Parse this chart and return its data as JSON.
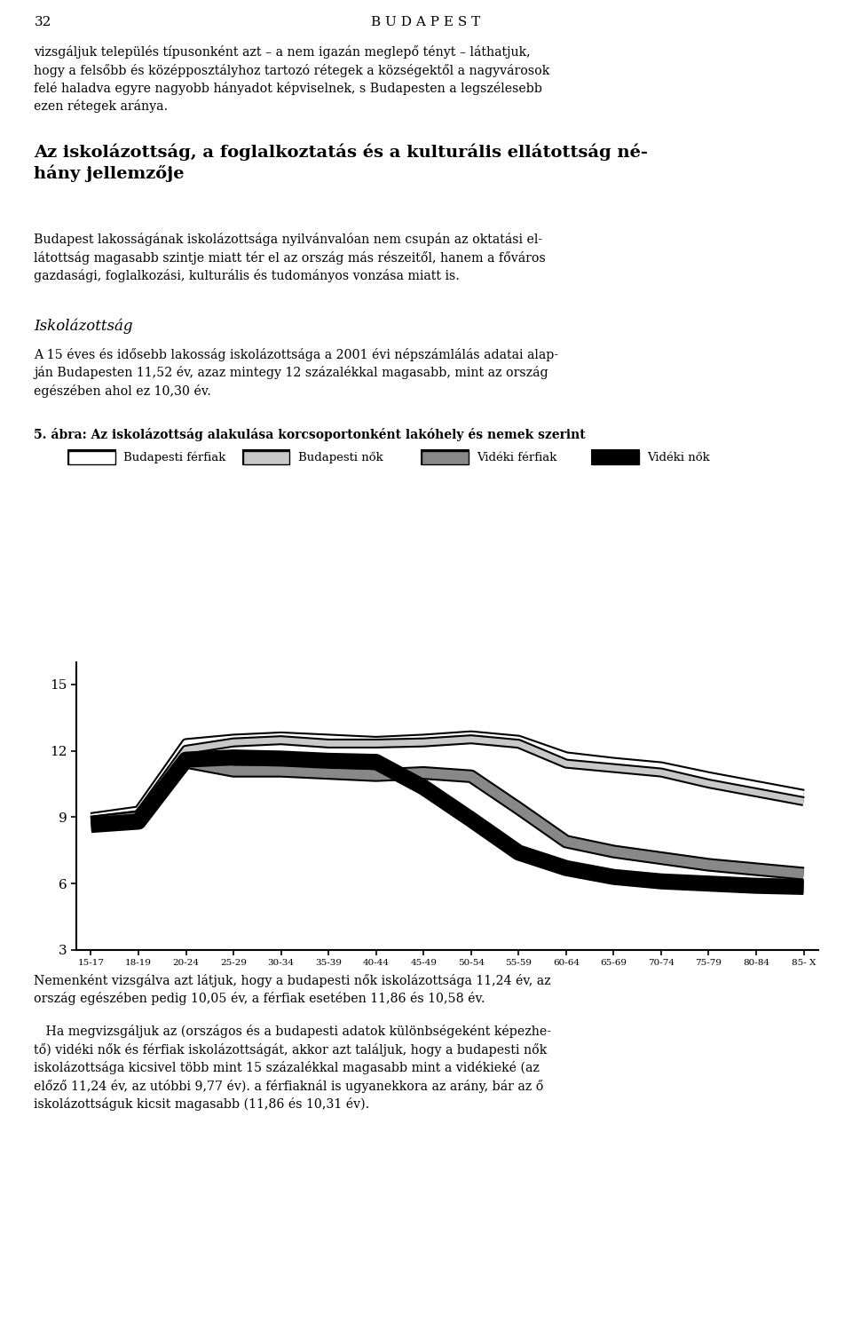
{
  "page_number": "32",
  "header_title": "B U D A P E S T",
  "body_text_1": "vizsgáljuk település típusonként azt – a nem igazán meglepő tényt – láthatjuk,\nhogy a felsőbb és középposztályhoz tartozó rétegek a községektől a nagyvárosok\nfelé haladva egyre nagyobb hányadot képviselnek, s Budapesten a legszélesebb\nezen rétegek aránya.",
  "section_title": "Az iskolázottság, a foglalkoztatás és a kulturális ellátottság né-\nhány jellemzője",
  "body_text_2": "Budapest lakosságának iskolázottsága nyilvánvalóan nem csupán az oktatási el-\nlátottság magasabb szintje miatt tér el az ország más részeitől, hanem a főváros\ngazdasági, foglalkozási, kulturális és tudományos vonzása miatt is.",
  "subsection_title": "Iskolázottság",
  "body_text_3": "A 15 éves és idősebb lakosság iskolázottsága a 2001 évi népszámlálás adatai alap-\nján Budapesten 11,52 év, azaz mintegy 12 százalékkal magasabb, mint az ország\negészében ahol ez 10,30 év.",
  "chart_caption": "5. ábra: Az iskolázottság alakulása korcsoportonként lakóhely és nemek szerint",
  "legend_items": [
    "Budapesti férfiak",
    "Budapesti nők",
    "Vidéki férfiak",
    "Vidéki nők"
  ],
  "legend_colors": [
    "#ffffff",
    "#c8c8c8",
    "#888888",
    "#000000"
  ],
  "x_labels": [
    "15-17",
    "18-19",
    "20-24",
    "25-29",
    "30-34",
    "35-39",
    "40-44",
    "45-49",
    "50-54",
    "55-59",
    "60-64",
    "65-69",
    "70-74",
    "75-79",
    "80-84",
    "85- X"
  ],
  "y_ticks": [
    3,
    6,
    9,
    12,
    15
  ],
  "ylim": [
    3,
    16
  ],
  "series_Budapesti_ferfiak": [
    9.0,
    9.3,
    12.35,
    12.55,
    12.65,
    12.55,
    12.45,
    12.55,
    12.7,
    12.5,
    11.75,
    11.5,
    11.3,
    10.85,
    10.45,
    10.05
  ],
  "series_Budapesti_nok": [
    8.85,
    9.1,
    12.05,
    12.38,
    12.48,
    12.33,
    12.33,
    12.38,
    12.52,
    12.32,
    11.42,
    11.22,
    11.02,
    10.52,
    10.12,
    9.72
  ],
  "series_Videki_ferfiak": [
    8.75,
    9.0,
    11.5,
    11.1,
    11.1,
    11.0,
    10.9,
    11.0,
    10.85,
    9.4,
    7.9,
    7.45,
    7.15,
    6.85,
    6.65,
    6.45
  ],
  "series_Videki_nok": [
    8.65,
    8.8,
    11.6,
    11.7,
    11.65,
    11.55,
    11.5,
    10.35,
    8.9,
    7.4,
    6.7,
    6.3,
    6.1,
    6.0,
    5.9,
    5.85
  ],
  "body_text_4": "Nemenként vizsgálva azt látjuk, hogy a budapesti nők iskolázottsága 11,24 év, az\nország egészében pedig 10,05 év, a férfiak esetében 11,86 és 10,58 év.",
  "body_text_5": "   Ha megvizsgáljuk az (országos és a budapesti adatok különbségeként képezhe-\ntő) vidéki nők és férfiak iskolázottságát, akkor azt találjuk, hogy a budapesti nők\niskolázottsága kicsivel több mint 15 százalékkal magasabb mint a vidékieké (az\nelőző 11,24 év, az utóbbi 9,77 év). a férfiaknál is ugyanekkora az arány, bár az ő\niskolázottságuk kicsit magasabb (11,86 és 10,31 év)."
}
